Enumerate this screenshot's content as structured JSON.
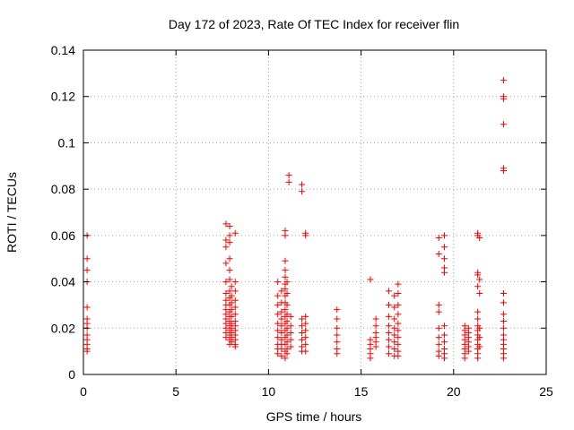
{
  "chart_data": {
    "type": "scatter",
    "title": "Day 172 of 2023, Rate Of TEC Index for receiver flin",
    "xlabel": "GPS time / hours",
    "ylabel": "ROTI / TECUs",
    "xlim": [
      0,
      25
    ],
    "ylim": [
      0,
      0.14
    ],
    "xticks": [
      "0",
      "5",
      "10",
      "15",
      "20",
      "25"
    ],
    "yticks": [
      "0",
      "0.02",
      "0.04",
      "0.06",
      "0.08",
      "0.1",
      "0.12",
      "0.14"
    ],
    "grid": true,
    "marker": "+",
    "color": "#ff0000",
    "series": [
      {
        "points": [
          [
            0.2,
            0.06
          ],
          [
            0.2,
            0.05
          ],
          [
            0.2,
            0.045
          ],
          [
            0.2,
            0.04
          ],
          [
            0.2,
            0.029
          ],
          [
            0.2,
            0.024
          ],
          [
            0.2,
            0.022
          ],
          [
            0.2,
            0.02
          ],
          [
            0.2,
            0.017
          ],
          [
            0.2,
            0.015
          ],
          [
            0.2,
            0.013
          ],
          [
            0.2,
            0.011
          ],
          [
            0.2,
            0.01
          ],
          [
            7.7,
            0.065
          ],
          [
            7.7,
            0.058
          ],
          [
            7.7,
            0.055
          ],
          [
            7.7,
            0.048
          ],
          [
            7.7,
            0.04
          ],
          [
            7.7,
            0.035
          ],
          [
            7.7,
            0.032
          ],
          [
            7.7,
            0.03
          ],
          [
            7.7,
            0.028
          ],
          [
            7.7,
            0.026
          ],
          [
            7.7,
            0.024
          ],
          [
            7.7,
            0.022
          ],
          [
            7.7,
            0.02
          ],
          [
            7.7,
            0.018
          ],
          [
            7.7,
            0.016
          ],
          [
            7.9,
            0.064
          ],
          [
            7.9,
            0.06
          ],
          [
            7.9,
            0.057
          ],
          [
            7.9,
            0.05
          ],
          [
            7.9,
            0.045
          ],
          [
            7.9,
            0.041
          ],
          [
            7.9,
            0.036
          ],
          [
            7.9,
            0.033
          ],
          [
            7.9,
            0.03
          ],
          [
            7.9,
            0.027
          ],
          [
            7.9,
            0.025
          ],
          [
            7.9,
            0.023
          ],
          [
            7.9,
            0.021
          ],
          [
            7.9,
            0.019
          ],
          [
            7.9,
            0.017
          ],
          [
            7.9,
            0.015
          ],
          [
            7.9,
            0.013
          ],
          [
            8.0,
            0.038
          ],
          [
            8.0,
            0.034
          ],
          [
            8.0,
            0.031
          ],
          [
            8.0,
            0.028
          ],
          [
            8.0,
            0.025
          ],
          [
            8.0,
            0.022
          ],
          [
            8.0,
            0.02
          ],
          [
            8.0,
            0.018
          ],
          [
            8.0,
            0.016
          ],
          [
            8.0,
            0.014
          ],
          [
            8.2,
            0.061
          ],
          [
            8.2,
            0.04
          ],
          [
            8.2,
            0.036
          ],
          [
            8.2,
            0.032
          ],
          [
            8.2,
            0.029
          ],
          [
            8.2,
            0.026
          ],
          [
            8.2,
            0.023
          ],
          [
            8.2,
            0.021
          ],
          [
            8.2,
            0.019
          ],
          [
            8.2,
            0.017
          ],
          [
            8.2,
            0.015
          ],
          [
            8.2,
            0.013
          ],
          [
            8.2,
            0.012
          ],
          [
            10.5,
            0.04
          ],
          [
            10.5,
            0.034
          ],
          [
            10.5,
            0.03
          ],
          [
            10.5,
            0.026
          ],
          [
            10.5,
            0.022
          ],
          [
            10.5,
            0.019
          ],
          [
            10.5,
            0.016
          ],
          [
            10.5,
            0.013
          ],
          [
            10.5,
            0.011
          ],
          [
            10.5,
            0.009
          ],
          [
            10.7,
            0.036
          ],
          [
            10.7,
            0.031
          ],
          [
            10.7,
            0.027
          ],
          [
            10.7,
            0.024
          ],
          [
            10.7,
            0.021
          ],
          [
            10.7,
            0.018
          ],
          [
            10.7,
            0.015
          ],
          [
            10.7,
            0.013
          ],
          [
            10.7,
            0.011
          ],
          [
            10.7,
            0.008
          ],
          [
            10.9,
            0.062
          ],
          [
            10.9,
            0.06
          ],
          [
            10.9,
            0.049
          ],
          [
            10.9,
            0.045
          ],
          [
            10.9,
            0.042
          ],
          [
            10.9,
            0.039
          ],
          [
            10.9,
            0.037
          ],
          [
            10.9,
            0.034
          ],
          [
            10.9,
            0.031
          ],
          [
            10.9,
            0.028
          ],
          [
            10.9,
            0.025
          ],
          [
            10.9,
            0.022
          ],
          [
            10.9,
            0.019
          ],
          [
            10.9,
            0.016
          ],
          [
            10.9,
            0.013
          ],
          [
            10.9,
            0.01
          ],
          [
            10.9,
            0.007
          ],
          [
            11.0,
            0.04
          ],
          [
            11.0,
            0.035
          ],
          [
            11.0,
            0.03
          ],
          [
            11.0,
            0.026
          ],
          [
            11.0,
            0.023
          ],
          [
            11.0,
            0.02
          ],
          [
            11.0,
            0.017
          ],
          [
            11.0,
            0.014
          ],
          [
            11.0,
            0.011
          ],
          [
            11.0,
            0.009
          ],
          [
            11.1,
            0.086
          ],
          [
            11.1,
            0.083
          ],
          [
            11.2,
            0.025
          ],
          [
            11.2,
            0.021
          ],
          [
            11.2,
            0.018
          ],
          [
            11.2,
            0.015
          ],
          [
            11.2,
            0.012
          ],
          [
            11.8,
            0.082
          ],
          [
            11.8,
            0.079
          ],
          [
            11.8,
            0.024
          ],
          [
            11.8,
            0.021
          ],
          [
            11.8,
            0.018
          ],
          [
            11.8,
            0.015
          ],
          [
            11.8,
            0.012
          ],
          [
            11.8,
            0.01
          ],
          [
            12.0,
            0.061
          ],
          [
            12.0,
            0.06
          ],
          [
            12.0,
            0.025
          ],
          [
            12.0,
            0.022
          ],
          [
            12.0,
            0.019
          ],
          [
            12.0,
            0.016
          ],
          [
            12.0,
            0.013
          ],
          [
            12.0,
            0.01
          ],
          [
            13.7,
            0.028
          ],
          [
            13.7,
            0.024
          ],
          [
            13.7,
            0.02
          ],
          [
            13.7,
            0.017
          ],
          [
            13.7,
            0.014
          ],
          [
            13.7,
            0.011
          ],
          [
            13.7,
            0.009
          ],
          [
            15.5,
            0.041
          ],
          [
            15.5,
            0.015
          ],
          [
            15.5,
            0.013
          ],
          [
            15.5,
            0.011
          ],
          [
            15.5,
            0.009
          ],
          [
            15.5,
            0.007
          ],
          [
            15.8,
            0.024
          ],
          [
            15.8,
            0.021
          ],
          [
            15.8,
            0.018
          ],
          [
            15.8,
            0.016
          ],
          [
            15.8,
            0.014
          ],
          [
            15.8,
            0.012
          ],
          [
            16.5,
            0.036
          ],
          [
            16.5,
            0.03
          ],
          [
            16.5,
            0.025
          ],
          [
            16.5,
            0.021
          ],
          [
            16.5,
            0.018
          ],
          [
            16.5,
            0.015
          ],
          [
            16.5,
            0.012
          ],
          [
            16.5,
            0.009
          ],
          [
            16.8,
            0.034
          ],
          [
            16.8,
            0.029
          ],
          [
            16.8,
            0.024
          ],
          [
            16.8,
            0.02
          ],
          [
            16.8,
            0.017
          ],
          [
            16.8,
            0.014
          ],
          [
            16.8,
            0.011
          ],
          [
            16.8,
            0.008
          ],
          [
            17.0,
            0.039
          ],
          [
            17.0,
            0.035
          ],
          [
            17.0,
            0.03
          ],
          [
            17.0,
            0.026
          ],
          [
            17.0,
            0.022
          ],
          [
            17.0,
            0.019
          ],
          [
            17.0,
            0.016
          ],
          [
            17.0,
            0.013
          ],
          [
            17.0,
            0.01
          ],
          [
            17.0,
            0.008
          ],
          [
            19.2,
            0.059
          ],
          [
            19.2,
            0.052
          ],
          [
            19.2,
            0.03
          ],
          [
            19.2,
            0.027
          ],
          [
            19.2,
            0.02
          ],
          [
            19.2,
            0.016
          ],
          [
            19.2,
            0.013
          ],
          [
            19.2,
            0.01
          ],
          [
            19.2,
            0.008
          ],
          [
            19.5,
            0.06
          ],
          [
            19.5,
            0.055
          ],
          [
            19.5,
            0.05
          ],
          [
            19.5,
            0.046
          ],
          [
            19.5,
            0.044
          ],
          [
            19.5,
            0.021
          ],
          [
            19.5,
            0.017
          ],
          [
            19.5,
            0.014
          ],
          [
            19.5,
            0.011
          ],
          [
            19.5,
            0.009
          ],
          [
            19.5,
            0.007
          ],
          [
            20.6,
            0.021
          ],
          [
            20.6,
            0.019
          ],
          [
            20.6,
            0.017
          ],
          [
            20.6,
            0.015
          ],
          [
            20.6,
            0.013
          ],
          [
            20.6,
            0.011
          ],
          [
            20.6,
            0.009
          ],
          [
            20.6,
            0.007
          ],
          [
            20.8,
            0.02
          ],
          [
            20.8,
            0.018
          ],
          [
            20.8,
            0.016
          ],
          [
            20.8,
            0.014
          ],
          [
            20.8,
            0.012
          ],
          [
            20.8,
            0.01
          ],
          [
            21.3,
            0.061
          ],
          [
            21.3,
            0.06
          ],
          [
            21.3,
            0.044
          ],
          [
            21.3,
            0.043
          ],
          [
            21.3,
            0.038
          ],
          [
            21.3,
            0.027
          ],
          [
            21.3,
            0.024
          ],
          [
            21.3,
            0.021
          ],
          [
            21.3,
            0.019
          ],
          [
            21.3,
            0.017
          ],
          [
            21.3,
            0.015
          ],
          [
            21.3,
            0.013
          ],
          [
            21.3,
            0.011
          ],
          [
            21.3,
            0.009
          ],
          [
            21.3,
            0.007
          ],
          [
            21.4,
            0.059
          ],
          [
            21.4,
            0.041
          ],
          [
            21.4,
            0.035
          ],
          [
            21.4,
            0.02
          ],
          [
            21.4,
            0.016
          ],
          [
            21.4,
            0.012
          ],
          [
            22.7,
            0.127
          ],
          [
            22.7,
            0.12
          ],
          [
            22.7,
            0.119
          ],
          [
            22.7,
            0.108
          ],
          [
            22.7,
            0.089
          ],
          [
            22.7,
            0.088
          ],
          [
            22.7,
            0.035
          ],
          [
            22.7,
            0.031
          ],
          [
            22.7,
            0.026
          ],
          [
            22.7,
            0.023
          ],
          [
            22.7,
            0.02
          ],
          [
            22.7,
            0.017
          ],
          [
            22.7,
            0.015
          ],
          [
            22.7,
            0.013
          ],
          [
            22.7,
            0.011
          ],
          [
            22.7,
            0.009
          ],
          [
            22.7,
            0.007
          ]
        ]
      }
    ]
  }
}
